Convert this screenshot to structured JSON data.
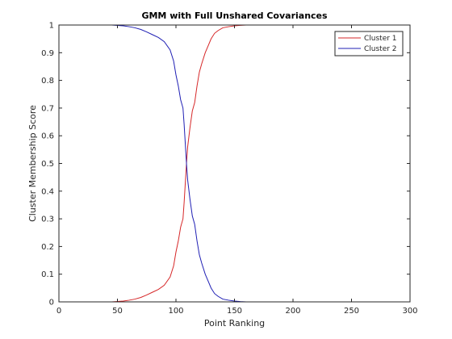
{
  "chart_data": {
    "type": "line",
    "title": "GMM with Full Unshared Covariances",
    "xlabel": "Point Ranking",
    "ylabel": "Cluster Membership Score",
    "xlim": [
      0,
      300
    ],
    "ylim": [
      0,
      1
    ],
    "xticks": [
      0,
      50,
      100,
      150,
      200,
      250,
      300
    ],
    "yticks": [
      0,
      0.1,
      0.2,
      0.3,
      0.4,
      0.5,
      0.6,
      0.7,
      0.8,
      0.9,
      1
    ],
    "xtick_labels": [
      "0",
      "50",
      "100",
      "150",
      "200",
      "250",
      "300"
    ],
    "ytick_labels": [
      "0",
      "0.1",
      "0.2",
      "0.3",
      "0.4",
      "0.5",
      "0.6",
      "0.7",
      "0.8",
      "0.9",
      "1"
    ],
    "grid": false,
    "legend": "top-right",
    "series": [
      {
        "name": "Cluster 1",
        "color": "#d62728",
        "x": [
          0,
          45,
          55,
          60,
          65,
          70,
          75,
          80,
          85,
          90,
          95,
          98,
          100,
          102,
          104,
          106,
          107,
          108,
          109,
          110,
          112,
          114,
          116,
          118,
          120,
          122,
          125,
          128,
          130,
          133,
          136,
          140,
          145,
          150,
          155,
          160,
          165,
          300
        ],
        "y": [
          0,
          0,
          0.003,
          0.006,
          0.01,
          0.016,
          0.025,
          0.035,
          0.045,
          0.06,
          0.09,
          0.13,
          0.18,
          0.22,
          0.27,
          0.3,
          0.36,
          0.43,
          0.5,
          0.56,
          0.63,
          0.69,
          0.72,
          0.78,
          0.83,
          0.86,
          0.9,
          0.93,
          0.95,
          0.97,
          0.98,
          0.99,
          0.994,
          0.997,
          0.999,
          1,
          1,
          1
        ]
      },
      {
        "name": "Cluster 2",
        "color": "#1f1fb4",
        "x": [
          0,
          45,
          55,
          60,
          65,
          70,
          75,
          80,
          85,
          90,
          95,
          98,
          100,
          102,
          104,
          106,
          107,
          108,
          109,
          110,
          112,
          114,
          116,
          118,
          120,
          122,
          125,
          128,
          130,
          133,
          136,
          140,
          145,
          150,
          155,
          160,
          165,
          300
        ],
        "y": [
          1,
          1,
          0.997,
          0.994,
          0.99,
          0.984,
          0.975,
          0.965,
          0.955,
          0.94,
          0.91,
          0.87,
          0.82,
          0.78,
          0.73,
          0.7,
          0.64,
          0.57,
          0.5,
          0.44,
          0.37,
          0.31,
          0.28,
          0.22,
          0.17,
          0.14,
          0.1,
          0.07,
          0.05,
          0.03,
          0.02,
          0.01,
          0.006,
          0.003,
          0.001,
          0,
          0,
          0
        ]
      }
    ]
  }
}
